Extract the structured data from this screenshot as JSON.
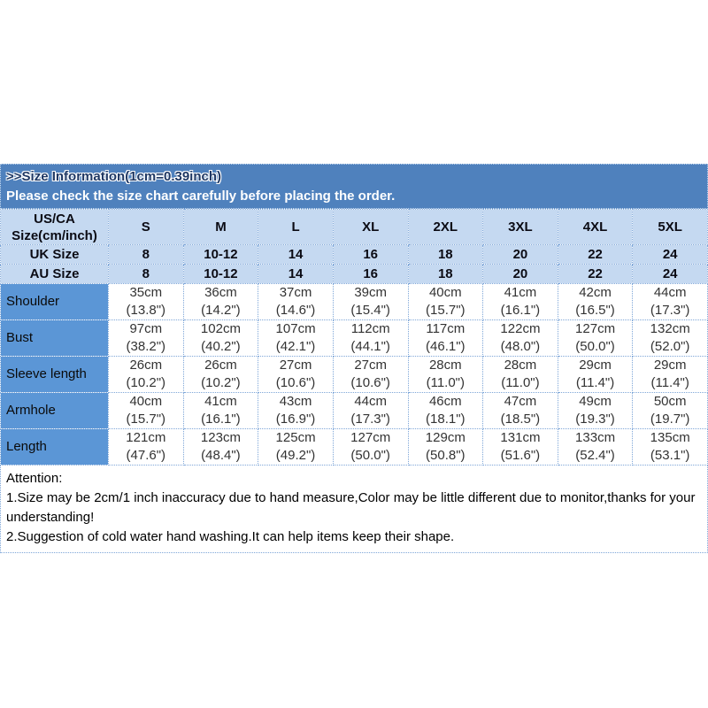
{
  "banner": {
    "title": ">>Size Information(1cm=0.39inch)",
    "subtitle": "Please check the size chart carefully before placing the order."
  },
  "size_table": {
    "corner_label_line1": "US/CA",
    "corner_label_line2": "Size(cm/inch)",
    "columns": [
      "S",
      "M",
      "L",
      "XL",
      "2XL",
      "3XL",
      "4XL",
      "5XL"
    ],
    "conversion_rows": [
      {
        "label": "UK Size",
        "values": [
          "8",
          "10-12",
          "14",
          "16",
          "18",
          "20",
          "22",
          "24"
        ]
      },
      {
        "label": "AU Size",
        "values": [
          "8",
          "10-12",
          "14",
          "16",
          "18",
          "20",
          "22",
          "24"
        ]
      }
    ],
    "measurement_rows": [
      {
        "label": "Shoulder",
        "cells": [
          [
            "35cm",
            "(13.8\")"
          ],
          [
            "36cm",
            "(14.2\")"
          ],
          [
            "37cm",
            "(14.6\")"
          ],
          [
            "39cm",
            "(15.4\")"
          ],
          [
            "40cm",
            "(15.7\")"
          ],
          [
            "41cm",
            "(16.1\")"
          ],
          [
            "42cm",
            "(16.5\")"
          ],
          [
            "44cm",
            "(17.3\")"
          ]
        ]
      },
      {
        "label": "Bust",
        "cells": [
          [
            "97cm",
            "(38.2\")"
          ],
          [
            "102cm",
            "(40.2\")"
          ],
          [
            "107cm",
            "(42.1\")"
          ],
          [
            "112cm",
            "(44.1\")"
          ],
          [
            "117cm",
            "(46.1\")"
          ],
          [
            "122cm",
            "(48.0\")"
          ],
          [
            "127cm",
            "(50.0\")"
          ],
          [
            "132cm",
            "(52.0\")"
          ]
        ]
      },
      {
        "label": "Sleeve length",
        "cells": [
          [
            "26cm",
            "(10.2\")"
          ],
          [
            "26cm",
            "(10.2\")"
          ],
          [
            "27cm",
            "(10.6\")"
          ],
          [
            "27cm",
            "(10.6\")"
          ],
          [
            "28cm",
            "(11.0\")"
          ],
          [
            "28cm",
            "(11.0\")"
          ],
          [
            "29cm",
            "(11.4\")"
          ],
          [
            "29cm",
            "(11.4\")"
          ]
        ]
      },
      {
        "label": "Armhole",
        "cells": [
          [
            "40cm",
            "(15.7\")"
          ],
          [
            "41cm",
            "(16.1\")"
          ],
          [
            "43cm",
            "(16.9\")"
          ],
          [
            "44cm",
            "(17.3\")"
          ],
          [
            "46cm",
            "(18.1\")"
          ],
          [
            "47cm",
            "(18.5\")"
          ],
          [
            "49cm",
            "(19.3\")"
          ],
          [
            "50cm",
            "(19.7\")"
          ]
        ]
      },
      {
        "label": "Length",
        "cells": [
          [
            "121cm",
            "(47.6\")"
          ],
          [
            "123cm",
            "(48.4\")"
          ],
          [
            "125cm",
            "(49.2\")"
          ],
          [
            "127cm",
            "(50.0\")"
          ],
          [
            "129cm",
            "(50.8\")"
          ],
          [
            "131cm",
            "(51.6\")"
          ],
          [
            "133cm",
            "(52.4\")"
          ],
          [
            "135cm",
            "(53.1\")"
          ]
        ]
      }
    ]
  },
  "attention": {
    "heading": "Attention:",
    "lines": [
      "1.Size may be 2cm/1 inch inaccuracy due to hand measure,Color may be little different due to monitor,thanks for your understanding!",
      "2.Suggestion of cold water hand washing.It can help items keep their shape."
    ]
  },
  "colors": {
    "banner_bg": "#4f81bd",
    "banner_title_text": "#1f3864",
    "banner_subtitle_text": "#ffffff",
    "header_row_bg": "#c5d9f1",
    "row_label_bg": "#5b96d6",
    "dotted_border": "#7ea6d8",
    "cell_text": "#333333"
  }
}
